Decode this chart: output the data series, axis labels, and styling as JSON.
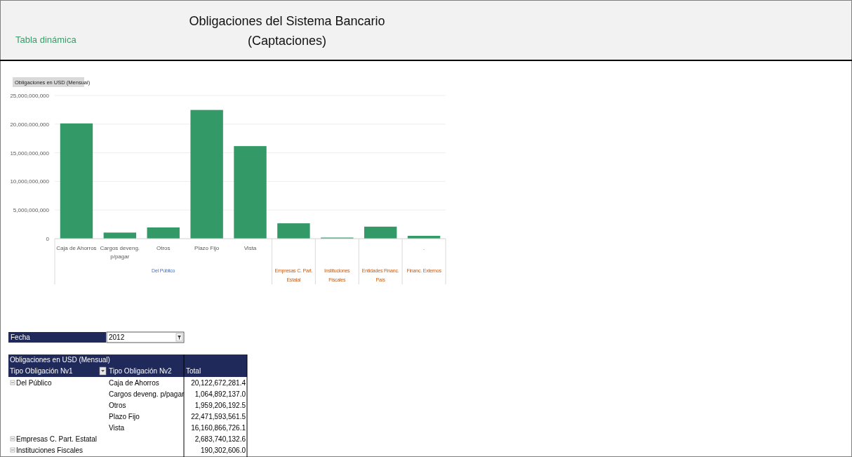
{
  "chart_data": {
    "type": "bar",
    "title": "Obligaciones del Sistema Bancario",
    "subtitle": "(Captaciones)",
    "ylabel": "Obligaciones en USD (Mensual)",
    "categories": [
      "Caja de Ahorros",
      "Cargos deveng. p/pagar",
      "Otros",
      "Plazo Fijo",
      "Vista",
      null,
      null,
      null,
      "."
    ],
    "values": [
      20122672281.4,
      1064892137.0,
      1959206192.5,
      22471593561.5,
      16160866726.1,
      2683740132.6,
      190302606.0,
      2100000000,
      500000000
    ],
    "color": "#339966",
    "ylim": [
      0,
      25000000000
    ],
    "yticks": [
      {
        "value": 0,
        "label": "0"
      },
      {
        "value": 5000000000,
        "label": "5,000,000,000"
      },
      {
        "value": 10000000000,
        "label": "10,000,000,000"
      },
      {
        "value": 15000000000,
        "label": "15,000,000,000"
      },
      {
        "value": 20000000000,
        "label": "20,000,000,000"
      },
      {
        "value": 25000000000,
        "label": "25,000,000,000"
      }
    ],
    "grid": "y",
    "annotations": [
      "Del Público",
      "Empresas C. Part. Estatal",
      "Instituciones Fiscales",
      "Entidades Financ. País",
      "Financ. Externos",
      "Tabla dinámica",
      "Fecha",
      "2012",
      "Tipo Obligación Nv1",
      "Tipo Obligación Nv2",
      "Total",
      "20,122,672,281.4",
      "1,064,892,137.0",
      "1,959,206,192.5",
      "22,471,593,561.5",
      "16,160,866,726.1",
      "2,683,740,132.6",
      "190,302,606.0"
    ]
  }
}
